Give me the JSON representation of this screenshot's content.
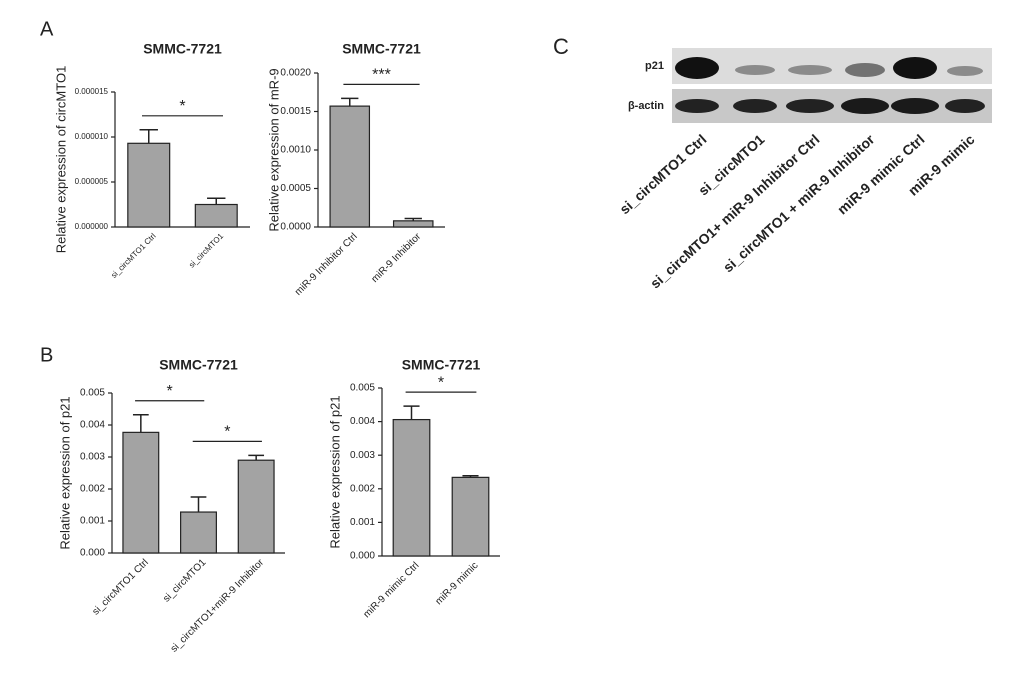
{
  "panel_labels": [
    "A",
    "B",
    "C"
  ],
  "chart_data": [
    {
      "type": "bar",
      "title": "SMMC-7721",
      "y_label": "Relative expression of circMTO1",
      "categories": [
        "si_circMTO1 Ctrl",
        "si_circMTO1"
      ],
      "values": [
        9.3e-06,
        2.5e-06
      ],
      "errors": [
        1.5e-06,
        7e-07
      ],
      "color": "#a3a3a3",
      "ylim": [
        0,
        1.5e-05
      ],
      "yticks": [
        {
          "value": 0,
          "label": "0.000000"
        },
        {
          "value": 5e-06,
          "label": "0.000005"
        },
        {
          "value": 1e-05,
          "label": "0.000010"
        },
        {
          "value": 1.5e-05,
          "label": "0.000015"
        }
      ],
      "annotations": [
        {
          "label": "*",
          "between": [
            "si_circMTO1 Ctrl",
            "si_circMTO1"
          ]
        }
      ]
    },
    {
      "type": "bar",
      "title": "SMMC-7721",
      "y_label": "Relative expression of mR-9",
      "categories": [
        "miR-9 Inhibitor Ctrl",
        "miR-9 Inhibitor"
      ],
      "values": [
        0.00157,
        8e-05
      ],
      "errors": [
        0.0001,
        3e-05
      ],
      "color": "#a3a3a3",
      "ylim": [
        0,
        0.002
      ],
      "yticks": [
        {
          "value": 0,
          "label": "0.0000"
        },
        {
          "value": 0.0005,
          "label": "0.0005"
        },
        {
          "value": 0.001,
          "label": "0.0010"
        },
        {
          "value": 0.0015,
          "label": "0.0015"
        },
        {
          "value": 0.002,
          "label": "0.0020"
        }
      ],
      "annotations": [
        {
          "label": "***",
          "between": [
            "miR-9 Inhibitor Ctrl",
            "miR-9 Inhibitor"
          ]
        }
      ]
    },
    {
      "type": "bar",
      "title": "SMMC-7721",
      "y_label": "Relative expression of p21",
      "categories": [
        "si_circMTO1 Ctrl",
        "si_circMTO1",
        "si_circMTO1+miR-9 Inhibitor"
      ],
      "values": [
        0.00377,
        0.00128,
        0.0029
      ],
      "errors": [
        0.00055,
        0.00047,
        0.00015
      ],
      "color": "#a3a3a3",
      "ylim": [
        0,
        0.005
      ],
      "yticks": [
        {
          "value": 0,
          "label": "0.000"
        },
        {
          "value": 0.001,
          "label": "0.001"
        },
        {
          "value": 0.002,
          "label": "0.002"
        },
        {
          "value": 0.003,
          "label": "0.003"
        },
        {
          "value": 0.004,
          "label": "0.004"
        },
        {
          "value": 0.005,
          "label": "0.005"
        }
      ],
      "annotations": [
        {
          "label": "*",
          "between": [
            "si_circMTO1 Ctrl",
            "si_circMTO1"
          ]
        },
        {
          "label": "*",
          "between": [
            "si_circMTO1",
            "si_circMTO1+miR-9 Inhibitor"
          ]
        }
      ]
    },
    {
      "type": "bar",
      "title": "SMMC-7721",
      "y_label": "Relative expression of p21",
      "categories": [
        "miR-9 mimic Ctrl",
        "miR-9 mimic"
      ],
      "values": [
        0.00406,
        0.00234
      ],
      "errors": [
        0.0004,
        5e-05
      ],
      "color": "#a3a3a3",
      "ylim": [
        0,
        0.005
      ],
      "yticks": [
        {
          "value": 0,
          "label": "0.000"
        },
        {
          "value": 0.001,
          "label": "0.001"
        },
        {
          "value": 0.002,
          "label": "0.002"
        },
        {
          "value": 0.003,
          "label": "0.003"
        },
        {
          "value": 0.004,
          "label": "0.004"
        },
        {
          "value": 0.005,
          "label": "0.005"
        }
      ],
      "annotations": [
        {
          "label": "*",
          "between": [
            "miR-9 mimic Ctrl",
            "miR-9 mimic"
          ]
        }
      ]
    }
  ],
  "blot": {
    "rows": [
      "p21",
      "β-actin"
    ],
    "lanes": [
      "si_circMTO1 Ctrl",
      "si_circMTO1",
      "si_circMTO1+ miR-9 Inhibitor Ctrl",
      "si_circMTO1 + miR-9 Inhibitor",
      "miR-9 mimic Ctrl",
      "miR-9 mimic"
    ]
  }
}
